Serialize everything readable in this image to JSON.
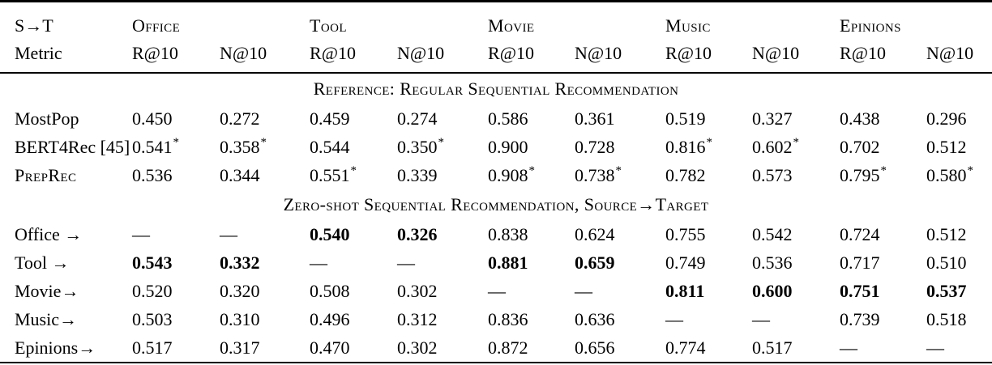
{
  "table": {
    "corner_row1": "S→T",
    "corner_row2": "Metric",
    "groups": [
      {
        "label": "Office"
      },
      {
        "label": "Tool"
      },
      {
        "label": "Movie"
      },
      {
        "label": "Music"
      },
      {
        "label": "Epinions"
      }
    ],
    "metric_labels": [
      "R@10",
      "N@10",
      "R@10",
      "N@10",
      "R@10",
      "N@10",
      "R@10",
      "N@10",
      "R@10",
      "N@10"
    ],
    "sections": [
      {
        "title": "Reference: Regular Sequential Recommendation",
        "rows": [
          {
            "label": "MostPop",
            "label_smallcaps": false,
            "cells": [
              {
                "v": "0.450"
              },
              {
                "v": "0.272"
              },
              {
                "v": "0.459"
              },
              {
                "v": "0.274"
              },
              {
                "v": "0.586"
              },
              {
                "v": "0.361"
              },
              {
                "v": "0.519"
              },
              {
                "v": "0.327"
              },
              {
                "v": "0.438"
              },
              {
                "v": "0.296"
              }
            ]
          },
          {
            "label": "BERT4Rec [45]",
            "label_smallcaps": false,
            "cells": [
              {
                "v": "0.541",
                "sup": "*"
              },
              {
                "v": "0.358",
                "sup": "*"
              },
              {
                "v": "0.544"
              },
              {
                "v": "0.350",
                "sup": "*"
              },
              {
                "v": "0.900"
              },
              {
                "v": "0.728"
              },
              {
                "v": "0.816",
                "sup": "*"
              },
              {
                "v": "0.602",
                "sup": "*"
              },
              {
                "v": "0.702"
              },
              {
                "v": "0.512"
              }
            ]
          },
          {
            "label": "PrepRec",
            "label_smallcaps": true,
            "cells": [
              {
                "v": "0.536"
              },
              {
                "v": "0.344"
              },
              {
                "v": "0.551",
                "sup": "*"
              },
              {
                "v": "0.339"
              },
              {
                "v": "0.908",
                "sup": "*"
              },
              {
                "v": "0.738",
                "sup": "*"
              },
              {
                "v": "0.782"
              },
              {
                "v": "0.573"
              },
              {
                "v": "0.795",
                "sup": "*"
              },
              {
                "v": "0.580",
                "sup": "*"
              }
            ]
          }
        ]
      },
      {
        "title": "Zero-shot Sequential Recommendation, Source→Target",
        "rows": [
          {
            "label": "Office →",
            "label_smallcaps": false,
            "cells": [
              {
                "v": "—",
                "empty": true
              },
              {
                "v": "—",
                "empty": true
              },
              {
                "v": "0.540",
                "b": true
              },
              {
                "v": "0.326",
                "b": true
              },
              {
                "v": "0.838"
              },
              {
                "v": "0.624"
              },
              {
                "v": "0.755"
              },
              {
                "v": "0.542"
              },
              {
                "v": "0.724"
              },
              {
                "v": "0.512"
              }
            ]
          },
          {
            "label": "Tool →",
            "label_smallcaps": false,
            "cells": [
              {
                "v": "0.543",
                "b": true
              },
              {
                "v": "0.332",
                "b": true
              },
              {
                "v": "—",
                "empty": true
              },
              {
                "v": "—",
                "empty": true
              },
              {
                "v": "0.881",
                "b": true
              },
              {
                "v": "0.659",
                "b": true
              },
              {
                "v": "0.749"
              },
              {
                "v": "0.536"
              },
              {
                "v": "0.717"
              },
              {
                "v": "0.510"
              }
            ]
          },
          {
            "label": "Movie→",
            "label_smallcaps": false,
            "cells": [
              {
                "v": "0.520"
              },
              {
                "v": "0.320"
              },
              {
                "v": "0.508"
              },
              {
                "v": "0.302"
              },
              {
                "v": "—",
                "empty": true
              },
              {
                "v": "—",
                "empty": true
              },
              {
                "v": "0.811",
                "b": true
              },
              {
                "v": "0.600",
                "b": true
              },
              {
                "v": "0.751",
                "b": true
              },
              {
                "v": "0.537",
                "b": true
              }
            ]
          },
          {
            "label": "Music→",
            "label_smallcaps": false,
            "cells": [
              {
                "v": "0.503"
              },
              {
                "v": "0.310"
              },
              {
                "v": "0.496"
              },
              {
                "v": "0.312"
              },
              {
                "v": "0.836"
              },
              {
                "v": "0.636"
              },
              {
                "v": "—",
                "empty": true
              },
              {
                "v": "—",
                "empty": true
              },
              {
                "v": "0.739"
              },
              {
                "v": "0.518"
              }
            ]
          },
          {
            "label": "Epinions→",
            "label_smallcaps": false,
            "cells": [
              {
                "v": "0.517"
              },
              {
                "v": "0.317"
              },
              {
                "v": "0.470"
              },
              {
                "v": "0.302"
              },
              {
                "v": "0.872"
              },
              {
                "v": "0.656"
              },
              {
                "v": "0.774"
              },
              {
                "v": "0.517"
              },
              {
                "v": "—",
                "empty": true
              },
              {
                "v": "—",
                "empty": true
              }
            ]
          }
        ]
      }
    ]
  }
}
